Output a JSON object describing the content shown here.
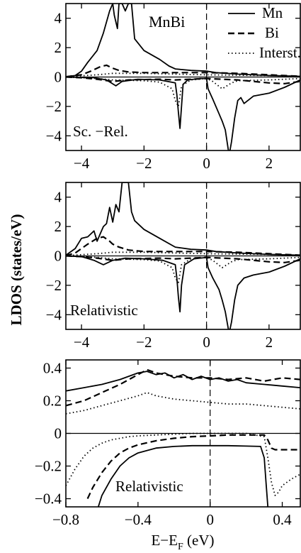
{
  "figure": {
    "ylabel": "LDOS (states/eV)",
    "xlabel_main": "E−E",
    "xlabel_sub": "F",
    "xlabel_unit": " (eV)"
  },
  "legend": [
    {
      "name": "Mn",
      "style": "solid"
    },
    {
      "name": "Bi",
      "style": "dashed"
    },
    {
      "name": "Interst.",
      "style": "dotted"
    }
  ],
  "chart_data": [
    {
      "type": "line",
      "title": "MnBi",
      "annotation": "Sc. −Rel.",
      "xlim": [
        -4.5,
        3.0
      ],
      "ylim": [
        -5.0,
        5.0
      ],
      "xticks": [
        -4,
        -2,
        0,
        2
      ],
      "xticklabels": [
        "−4",
        "−2",
        "0",
        "2"
      ],
      "yticks": [
        4,
        2,
        0,
        -2,
        -4
      ],
      "yticklabels": [
        "4",
        "2",
        "0",
        "−2",
        "−4"
      ],
      "fermi_line_x": 0,
      "series": [
        {
          "name": "Mn",
          "style": "solid",
          "x": [
            -4.5,
            -4.2,
            -4.0,
            -3.8,
            -3.5,
            -3.3,
            -3.1,
            -3.0,
            -2.95,
            -2.85,
            -2.8,
            -2.7,
            -2.6,
            -2.5,
            -2.4,
            -2.3,
            -2.0,
            -1.5,
            -1.2,
            -1.0,
            -0.5,
            0.0,
            0.3,
            1.0,
            2.0,
            3.0
          ],
          "y": [
            0.02,
            0.1,
            0.4,
            1.0,
            1.8,
            3.0,
            4.5,
            5.0,
            4.2,
            3.3,
            5.0,
            5.0,
            4.5,
            5.0,
            5.0,
            2.6,
            1.8,
            1.2,
            0.75,
            0.55,
            0.45,
            0.4,
            0.3,
            0.2,
            0.1,
            0.05
          ]
        },
        {
          "name": "Mn",
          "style": "solid",
          "x": [
            -4.5,
            -3.6,
            -3.2,
            -2.9,
            -2.7,
            -2.2,
            -1.5,
            -1.0,
            -0.95,
            -0.9,
            -0.85,
            -0.8,
            -0.75,
            -0.6,
            -0.2,
            0.0,
            0.05,
            0.2,
            0.4,
            0.5,
            0.6,
            0.7,
            0.75,
            0.8,
            0.9,
            1.0,
            1.1,
            1.2,
            1.5,
            2.0,
            2.5,
            3.0
          ],
          "y": [
            0,
            -0.05,
            -0.2,
            -0.6,
            -0.3,
            -0.15,
            -0.2,
            -0.4,
            -1.2,
            -2.4,
            -3.5,
            -2.0,
            -0.5,
            -0.2,
            -0.1,
            -0.1,
            -0.8,
            -1.5,
            -2.5,
            -3.0,
            -3.6,
            -5.0,
            -5.0,
            -4.4,
            -2.8,
            -1.6,
            -1.4,
            -1.8,
            -1.3,
            -1.1,
            -0.7,
            -0.2
          ]
        },
        {
          "name": "Bi",
          "style": "dashed",
          "x": [
            -4.5,
            -4.0,
            -3.7,
            -3.4,
            -3.2,
            -3.0,
            -2.8,
            -2.5,
            -2.0,
            -1.0,
            0.0,
            1.0,
            2.0,
            3.0
          ],
          "y": [
            0.02,
            0.15,
            0.4,
            0.7,
            0.8,
            0.6,
            0.45,
            0.35,
            0.3,
            0.3,
            0.3,
            0.25,
            0.15,
            0.05
          ]
        },
        {
          "name": "Bi",
          "style": "dashed",
          "x": [
            -4.5,
            -4.0,
            -3.5,
            -3.0,
            -2.5,
            -1.5,
            -1.0,
            -0.5,
            0.0,
            0.5,
            1.0,
            2.0,
            2.5,
            3.0
          ],
          "y": [
            0,
            -0.05,
            -0.15,
            -0.3,
            -0.2,
            -0.15,
            -0.2,
            -0.15,
            -0.1,
            -0.15,
            -0.2,
            -0.4,
            -0.45,
            -0.3
          ]
        },
        {
          "name": "Interst.",
          "style": "dotted",
          "x": [
            -4.5,
            -3.5,
            -3.0,
            -2.0,
            -1.0,
            0.0,
            1.0,
            2.0,
            3.0
          ],
          "y": [
            0.02,
            0.15,
            0.25,
            0.25,
            0.2,
            0.15,
            0.12,
            0.1,
            0.05
          ]
        },
        {
          "name": "Interst.",
          "style": "dotted",
          "x": [
            -4.5,
            -3.5,
            -3.0,
            -2.0,
            -1.5,
            -1.1,
            -1.0,
            -0.9,
            -0.8,
            -0.5,
            0.0,
            0.2,
            0.5,
            0.8,
            1.0,
            2.0,
            3.0
          ],
          "y": [
            0,
            -0.1,
            -0.2,
            -0.25,
            -0.35,
            -0.8,
            -1.6,
            -2.0,
            -0.6,
            -0.2,
            -0.1,
            -0.3,
            -0.8,
            -0.4,
            -0.25,
            -0.2,
            -0.1
          ]
        }
      ]
    },
    {
      "type": "line",
      "annotation": "Relativistic",
      "xlim": [
        -4.5,
        3.0
      ],
      "ylim": [
        -5.0,
        5.0
      ],
      "xticks": [
        -4,
        -2,
        0,
        2
      ],
      "xticklabels": [
        "−4",
        "−2",
        "0",
        "2"
      ],
      "yticks": [
        4,
        2,
        0,
        -2,
        -4
      ],
      "yticklabels": [
        "4",
        "2",
        "0",
        "−2",
        "−4"
      ],
      "fermi_line_x": 0,
      "series": [
        {
          "name": "Mn",
          "style": "solid",
          "x": [
            -4.5,
            -4.2,
            -4.0,
            -3.8,
            -3.6,
            -3.5,
            -3.4,
            -3.3,
            -3.2,
            -3.1,
            -3.0,
            -2.9,
            -2.8,
            -2.7,
            -2.6,
            -2.5,
            -2.4,
            -2.3,
            -2.0,
            -1.5,
            -1.0,
            -0.5,
            0.0,
            0.3,
            1.0,
            2.0,
            3.0
          ],
          "y": [
            0.05,
            0.5,
            1.2,
            1.3,
            1.7,
            1.0,
            1.5,
            2.0,
            2.2,
            3.3,
            2.3,
            3.5,
            3.0,
            5.0,
            5.0,
            5.0,
            3.0,
            2.4,
            1.8,
            1.2,
            0.6,
            0.45,
            0.4,
            0.3,
            0.2,
            0.1,
            0.05
          ]
        },
        {
          "name": "Mn",
          "style": "solid",
          "x": [
            -4.5,
            -4.0,
            -3.6,
            -3.3,
            -3.0,
            -2.6,
            -2.0,
            -1.4,
            -1.0,
            -0.95,
            -0.9,
            -0.85,
            -0.8,
            -0.7,
            -0.4,
            0.0,
            0.05,
            0.2,
            0.4,
            0.5,
            0.6,
            0.7,
            0.75,
            0.8,
            0.9,
            1.0,
            1.2,
            1.5,
            2.0,
            2.5,
            3.0
          ],
          "y": [
            0,
            -0.05,
            -0.3,
            -0.6,
            -0.3,
            -0.15,
            -0.2,
            -0.3,
            -0.6,
            -1.5,
            -2.8,
            -3.8,
            -2.0,
            -0.6,
            -0.2,
            -0.1,
            -0.8,
            -1.5,
            -2.3,
            -3.0,
            -3.8,
            -5.0,
            -5.0,
            -4.5,
            -3.0,
            -2.0,
            -1.5,
            -1.3,
            -1.1,
            -0.7,
            -0.2
          ]
        },
        {
          "name": "Bi",
          "style": "dashed",
          "x": [
            -4.5,
            -4.2,
            -4.0,
            -3.8,
            -3.5,
            -3.3,
            -3.1,
            -3.0,
            -2.8,
            -2.5,
            -2.0,
            -1.0,
            0.0,
            1.0,
            2.0,
            3.0
          ],
          "y": [
            0.02,
            0.2,
            0.5,
            0.8,
            1.2,
            1.3,
            1.0,
            0.8,
            0.6,
            0.4,
            0.3,
            0.3,
            0.3,
            0.25,
            0.15,
            0.05
          ]
        },
        {
          "name": "Bi",
          "style": "dashed",
          "x": [
            -4.5,
            -4.0,
            -3.5,
            -3.0,
            -2.5,
            -1.5,
            -1.0,
            -0.5,
            0.0,
            0.5,
            1.0,
            2.0,
            2.5,
            3.0
          ],
          "y": [
            0,
            -0.05,
            -0.15,
            -0.3,
            -0.2,
            -0.15,
            -0.2,
            -0.15,
            -0.1,
            -0.15,
            -0.2,
            -0.4,
            -0.45,
            -0.3
          ]
        },
        {
          "name": "Interst.",
          "style": "dotted",
          "x": [
            -4.5,
            -3.5,
            -3.0,
            -2.0,
            -1.0,
            0.0,
            1.0,
            2.0,
            3.0
          ],
          "y": [
            0.02,
            0.15,
            0.25,
            0.25,
            0.2,
            0.15,
            0.12,
            0.1,
            0.05
          ]
        },
        {
          "name": "Interst.",
          "style": "dotted",
          "x": [
            -4.5,
            -3.5,
            -3.0,
            -2.0,
            -1.5,
            -1.1,
            -1.0,
            -0.9,
            -0.8,
            -0.5,
            0.0,
            0.2,
            0.5,
            0.8,
            1.0,
            2.0,
            3.0
          ],
          "y": [
            0,
            -0.1,
            -0.2,
            -0.25,
            -0.35,
            -0.8,
            -1.5,
            -1.8,
            -0.6,
            -0.2,
            -0.1,
            -0.3,
            -0.8,
            -0.4,
            -0.25,
            -0.2,
            -0.1
          ]
        }
      ]
    },
    {
      "type": "line",
      "annotation": "Relativistic",
      "xlim": [
        -0.8,
        0.5
      ],
      "ylim": [
        -0.45,
        0.45
      ],
      "xticks": [
        -0.8,
        -0.4,
        0.0,
        0.4
      ],
      "xticklabels": [
        "−0.8",
        "−0.4",
        "0",
        "0.4"
      ],
      "yticks": [
        0.4,
        0.2,
        0,
        -0.2,
        -0.4
      ],
      "yticklabels": [
        "0.4",
        "0.2",
        "0",
        "−0.2",
        "−0.4"
      ],
      "fermi_line_x": 0,
      "series": [
        {
          "name": "Mn",
          "style": "solid",
          "x": [
            -0.8,
            -0.7,
            -0.6,
            -0.5,
            -0.45,
            -0.4,
            -0.35,
            -0.3,
            -0.25,
            -0.2,
            -0.15,
            -0.1,
            -0.05,
            0.0,
            0.05,
            0.1,
            0.15,
            0.2,
            0.3,
            0.4,
            0.5
          ],
          "y": [
            0.26,
            0.28,
            0.3,
            0.33,
            0.35,
            0.37,
            0.38,
            0.36,
            0.37,
            0.34,
            0.36,
            0.33,
            0.35,
            0.33,
            0.34,
            0.32,
            0.33,
            0.31,
            0.3,
            0.29,
            0.28
          ]
        },
        {
          "name": "Mn",
          "style": "solid",
          "x": [
            -0.62,
            -0.6,
            -0.55,
            -0.5,
            -0.45,
            -0.4,
            -0.3,
            -0.2,
            -0.1,
            0.0,
            0.1,
            0.2,
            0.28,
            0.3,
            0.31,
            0.32
          ],
          "y": [
            -0.45,
            -0.38,
            -0.28,
            -0.2,
            -0.15,
            -0.12,
            -0.09,
            -0.08,
            -0.075,
            -0.075,
            -0.075,
            -0.078,
            -0.08,
            -0.15,
            -0.3,
            -0.45
          ]
        },
        {
          "name": "Bi",
          "style": "dashed",
          "x": [
            -0.8,
            -0.7,
            -0.6,
            -0.5,
            -0.4,
            -0.35,
            -0.3,
            -0.25,
            -0.2,
            -0.1,
            0.0,
            0.1,
            0.2,
            0.3,
            0.4,
            0.5
          ],
          "y": [
            0.17,
            0.2,
            0.25,
            0.3,
            0.36,
            0.39,
            0.37,
            0.36,
            0.35,
            0.34,
            0.34,
            0.33,
            0.34,
            0.32,
            0.34,
            0.33
          ]
        },
        {
          "name": "Bi",
          "style": "dashed",
          "x": [
            -0.68,
            -0.65,
            -0.6,
            -0.55,
            -0.5,
            -0.45,
            -0.4,
            -0.3,
            -0.2,
            -0.1,
            0.0,
            0.1,
            0.2,
            0.3,
            0.32,
            0.34,
            0.36,
            0.4,
            0.45,
            0.5
          ],
          "y": [
            -0.4,
            -0.33,
            -0.24,
            -0.17,
            -0.12,
            -0.09,
            -0.07,
            -0.045,
            -0.03,
            -0.02,
            -0.015,
            -0.01,
            -0.01,
            -0.01,
            -0.04,
            -0.09,
            -0.1,
            -0.1,
            -0.1,
            -0.1
          ]
        },
        {
          "name": "Interst.",
          "style": "dotted",
          "x": [
            -0.8,
            -0.7,
            -0.6,
            -0.5,
            -0.4,
            -0.35,
            -0.3,
            -0.25,
            -0.2,
            -0.1,
            0.0,
            0.1,
            0.2,
            0.3,
            0.4,
            0.5
          ],
          "y": [
            0.12,
            0.14,
            0.17,
            0.2,
            0.23,
            0.25,
            0.23,
            0.22,
            0.21,
            0.2,
            0.19,
            0.18,
            0.18,
            0.17,
            0.16,
            0.15
          ]
        },
        {
          "name": "Interst.",
          "style": "dotted",
          "x": [
            -0.8,
            -0.75,
            -0.7,
            -0.65,
            -0.6,
            -0.55,
            -0.5,
            -0.45,
            -0.4,
            -0.3,
            -0.2,
            -0.1,
            0.0,
            0.1,
            0.2,
            0.3,
            0.32,
            0.34,
            0.36,
            0.38,
            0.4,
            0.45,
            0.5
          ],
          "y": [
            -0.32,
            -0.22,
            -0.14,
            -0.09,
            -0.06,
            -0.04,
            -0.03,
            -0.02,
            -0.015,
            -0.01,
            -0.005,
            0.0,
            0.0,
            0.0,
            0.0,
            -0.02,
            -0.15,
            -0.3,
            -0.38,
            -0.36,
            -0.32,
            -0.28,
            -0.25
          ]
        }
      ]
    }
  ]
}
